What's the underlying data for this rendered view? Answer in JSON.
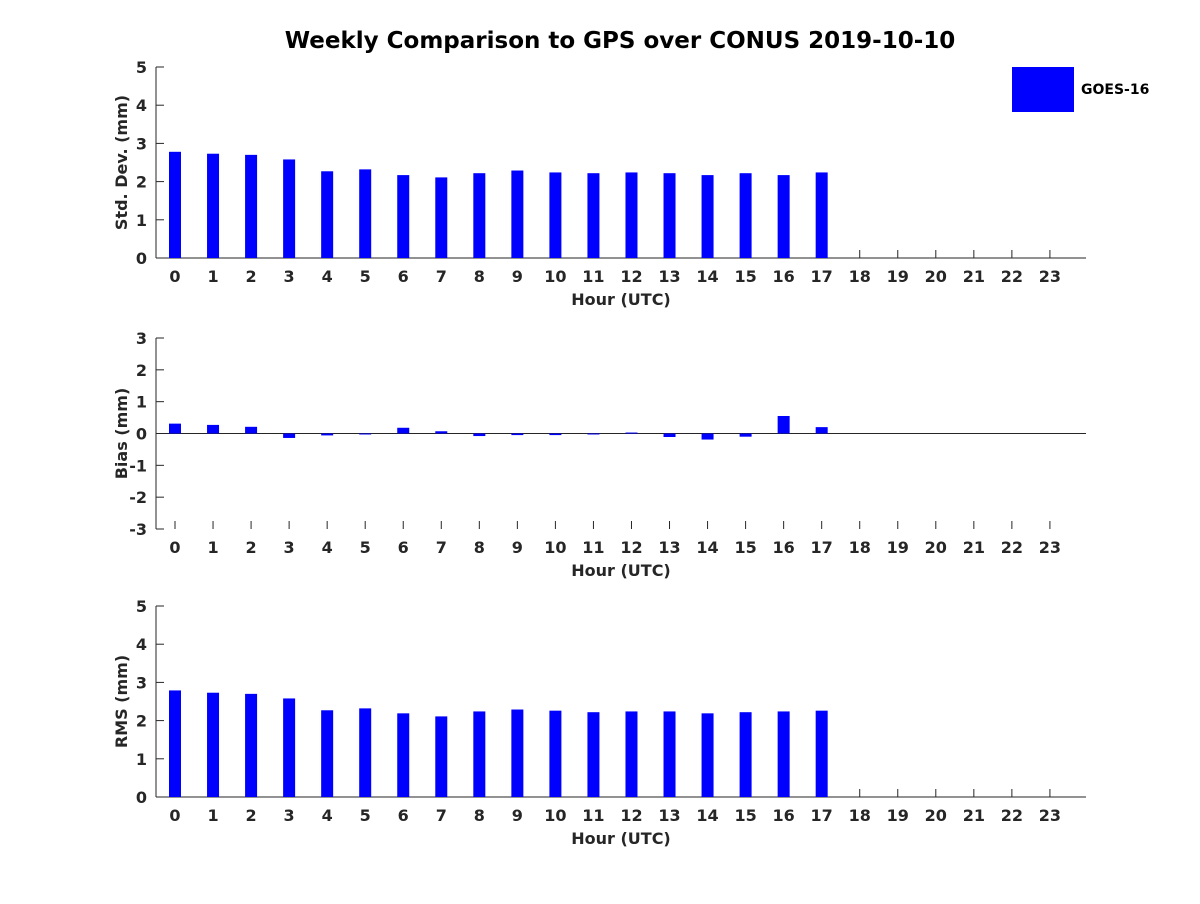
{
  "figure": {
    "title": "Weekly Comparison to GPS over CONUS 2019-10-10",
    "legend_label": "GOES-16",
    "series_color": "#0000ff"
  },
  "chart_data": [
    {
      "type": "bar",
      "ylabel": "Std. Dev. (mm)",
      "xlabel": "Hour (UTC)",
      "categories": [
        "0",
        "1",
        "2",
        "3",
        "4",
        "5",
        "6",
        "7",
        "8",
        "9",
        "10",
        "11",
        "12",
        "13",
        "14",
        "15",
        "16",
        "17",
        "18",
        "19",
        "20",
        "21",
        "22",
        "23"
      ],
      "ylim": [
        0,
        5
      ],
      "yticks": [
        "0",
        "1",
        "2",
        "3",
        "4",
        "5"
      ],
      "series": [
        {
          "name": "GOES-16",
          "values": [
            2.78,
            2.73,
            2.7,
            2.58,
            2.27,
            2.32,
            2.17,
            2.11,
            2.22,
            2.29,
            2.24,
            2.22,
            2.24,
            2.22,
            2.17,
            2.22,
            2.17,
            2.24,
            null,
            null,
            null,
            null,
            null,
            null
          ]
        }
      ]
    },
    {
      "type": "bar",
      "ylabel": "Bias (mm)",
      "xlabel": "Hour (UTC)",
      "categories": [
        "0",
        "1",
        "2",
        "3",
        "4",
        "5",
        "6",
        "7",
        "8",
        "9",
        "10",
        "11",
        "12",
        "13",
        "14",
        "15",
        "16",
        "17",
        "18",
        "19",
        "20",
        "21",
        "22",
        "23"
      ],
      "ylim": [
        -3,
        3
      ],
      "yticks": [
        "-3",
        "-2",
        "-1",
        "0",
        "1",
        "2",
        "3"
      ],
      "series": [
        {
          "name": "GOES-16",
          "values": [
            0.31,
            0.27,
            0.21,
            -0.14,
            -0.06,
            -0.03,
            0.18,
            0.07,
            -0.08,
            -0.05,
            -0.05,
            0.0,
            0.03,
            -0.11,
            -0.19,
            -0.1,
            0.55,
            0.2,
            null,
            null,
            null,
            null,
            null,
            null
          ]
        }
      ]
    },
    {
      "type": "bar",
      "ylabel": "RMS (mm)",
      "xlabel": "Hour (UTC)",
      "categories": [
        "0",
        "1",
        "2",
        "3",
        "4",
        "5",
        "6",
        "7",
        "8",
        "9",
        "10",
        "11",
        "12",
        "13",
        "14",
        "15",
        "16",
        "17",
        "18",
        "19",
        "20",
        "21",
        "22",
        "23"
      ],
      "ylim": [
        0,
        5
      ],
      "yticks": [
        "0",
        "1",
        "2",
        "3",
        "4",
        "5"
      ],
      "series": [
        {
          "name": "GOES-16",
          "values": [
            2.79,
            2.73,
            2.7,
            2.58,
            2.27,
            2.32,
            2.19,
            2.11,
            2.24,
            2.29,
            2.26,
            2.22,
            2.24,
            2.24,
            2.19,
            2.22,
            2.24,
            2.26,
            null,
            null,
            null,
            null,
            null,
            null
          ]
        }
      ]
    }
  ]
}
